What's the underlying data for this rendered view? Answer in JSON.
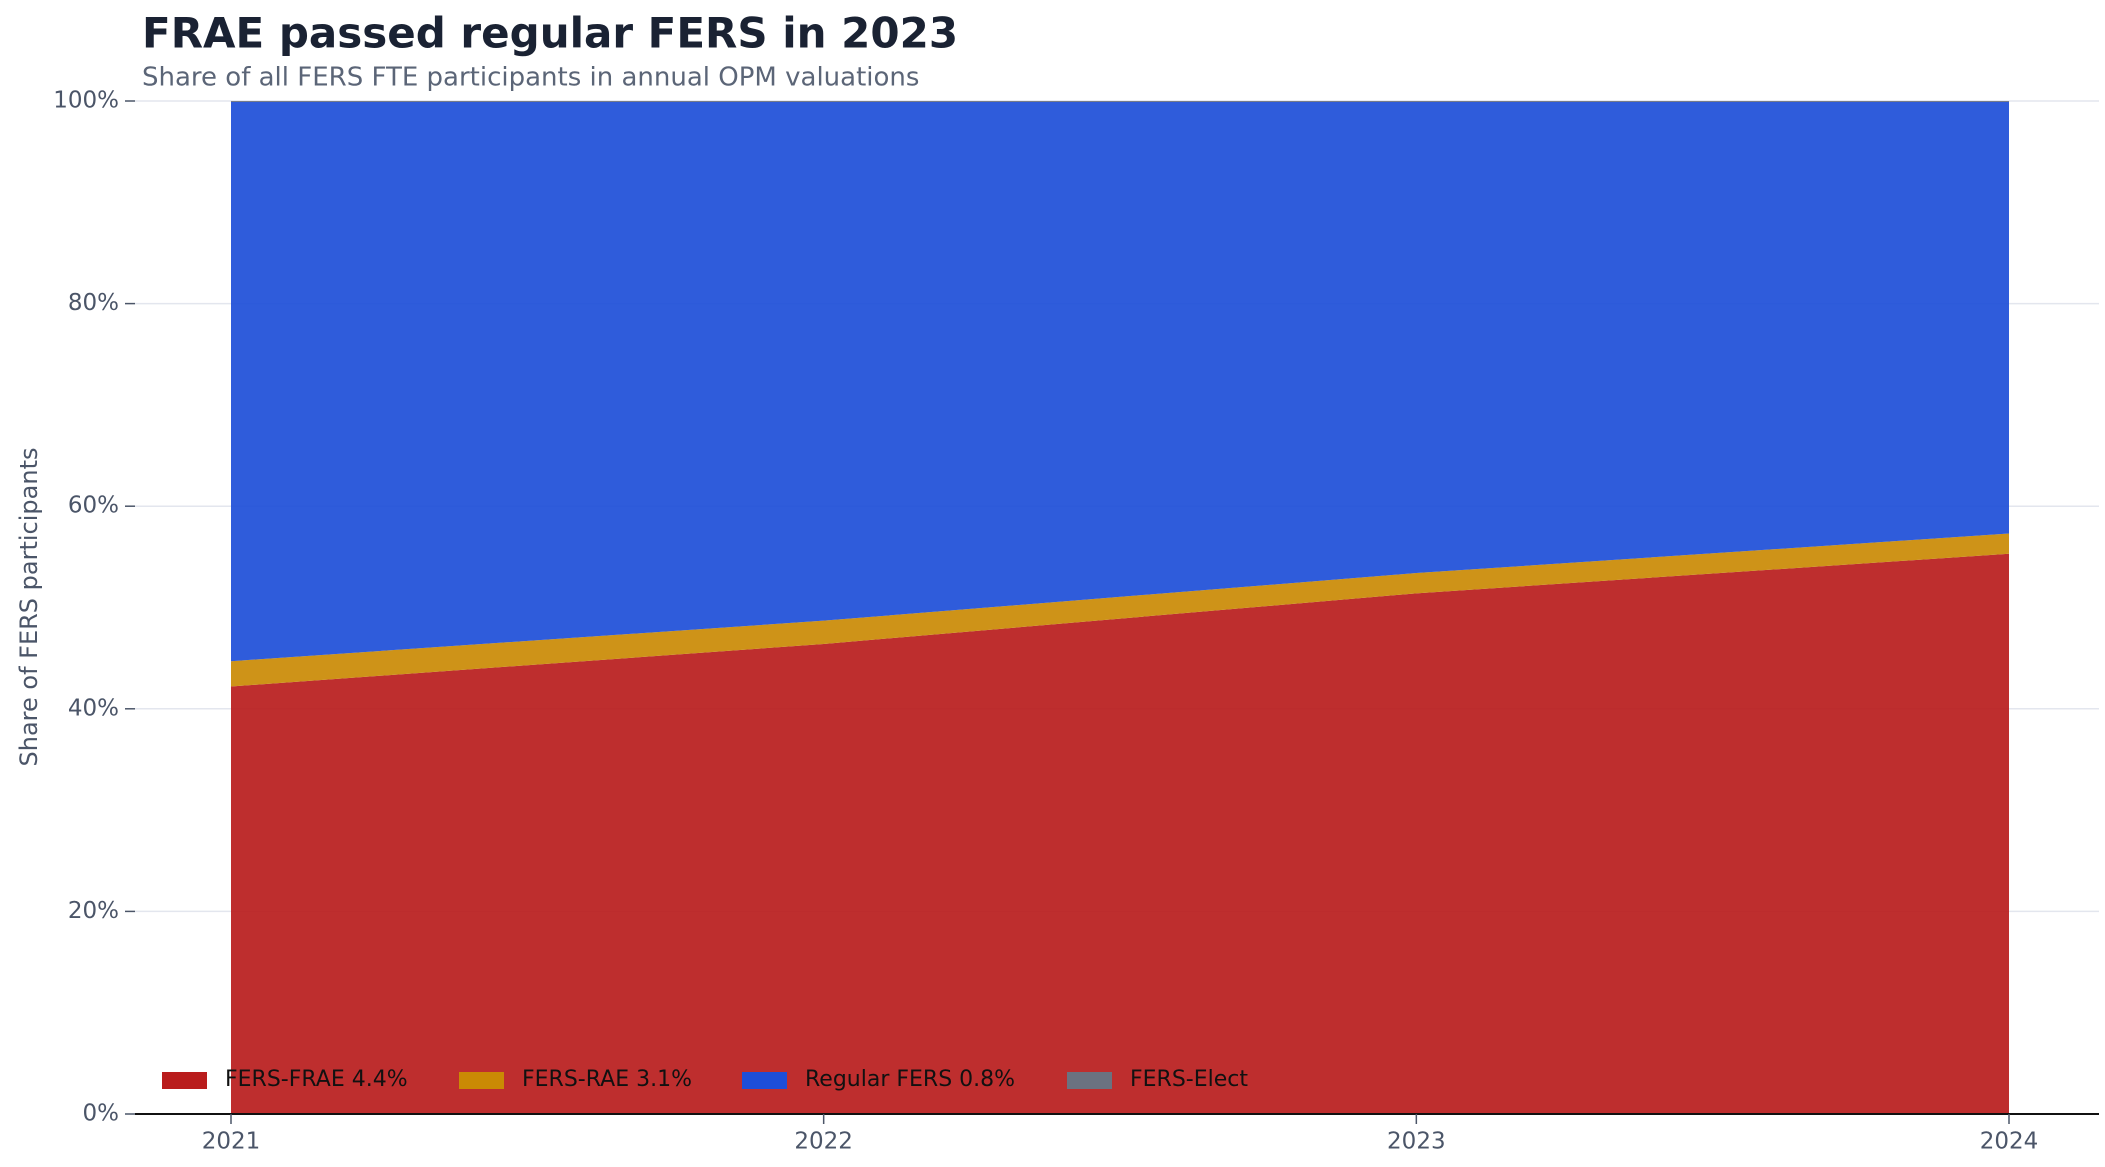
{
  "chart_data": {
    "type": "stacked-area",
    "title": "FRAE passed regular FERS in 2023",
    "subtitle": "Share of all FERS FTE participants in annual OPM valuations",
    "y_label": "Share of FERS participants",
    "categories": [
      "2021",
      "2022",
      "2023",
      "2024"
    ],
    "series": [
      {
        "name": "FERS-FRAE 4.4%",
        "color": "#b91c1c",
        "values": [
          42.2,
          46.4,
          51.4,
          55.3
        ]
      },
      {
        "name": "FERS-RAE 3.1%",
        "color": "#ca8a04",
        "values": [
          2.5,
          2.3,
          2.0,
          2.0
        ]
      },
      {
        "name": "Regular FERS 0.8%",
        "color": "#1d4ed8",
        "values": [
          55.2,
          51.2,
          46.5,
          42.6
        ]
      },
      {
        "name": "FERS-Elect",
        "color": "#6b7280",
        "values": [
          0.1,
          0.1,
          0.1,
          0.1
        ]
      }
    ],
    "ylim": [
      0,
      100
    ],
    "yticks": [
      {
        "value": 0,
        "label": "0%"
      },
      {
        "value": 20,
        "label": "20%"
      },
      {
        "value": 40,
        "label": "40%"
      },
      {
        "value": 60,
        "label": "60%"
      },
      {
        "value": 80,
        "label": "80%"
      },
      {
        "value": 100,
        "label": "100%"
      }
    ],
    "grid": true,
    "legend": "lower-left"
  }
}
